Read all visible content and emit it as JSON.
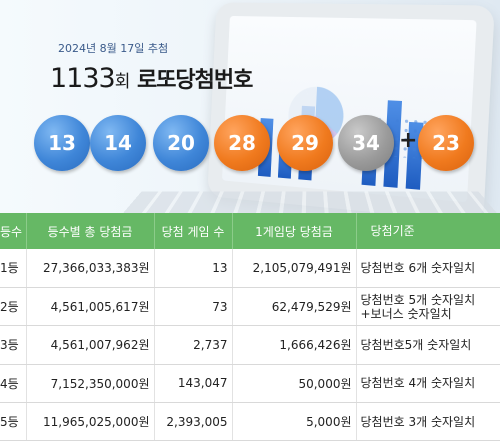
{
  "banner": {
    "draw_date": "2024년 8월 17일 추첨",
    "round_number": "1133",
    "round_unit": "회",
    "round_text": "로또당첨번호",
    "numbers": [
      "13",
      "14",
      "20",
      "28",
      "29",
      "34"
    ],
    "plus": "+",
    "bonus": "23",
    "ball_colors": {
      "blue": "#3f86d8",
      "orange": "#f07a1e",
      "gray": "#9b9b9b"
    }
  },
  "table": {
    "headers": [
      "등수",
      "등수별 총 당첨금",
      "당첨 게임 수",
      "1게임당 당첨금",
      "당첨기준"
    ],
    "header_color": "#66b865",
    "rows": [
      {
        "rank": "1등",
        "total": "27,366,033,383원",
        "count": "13",
        "per_game": "2,105,079,491원",
        "criteria": "당첨번호 6개 숫자일치",
        "criteria2": ""
      },
      {
        "rank": "2등",
        "total": "4,561,005,617원",
        "count": "73",
        "per_game": "62,479,529원",
        "criteria": "당첨번호 5개 숫자일치",
        "criteria2": "+보너스 숫자일치"
      },
      {
        "rank": "3등",
        "total": "4,561,007,962원",
        "count": "2,737",
        "per_game": "1,666,426원",
        "criteria": "당첨번호5개 숫자일치",
        "criteria2": ""
      },
      {
        "rank": "4등",
        "total": "7,152,350,000원",
        "count": "143,047",
        "per_game": "50,000원",
        "criteria": "당첨번호 4개 숫자일치",
        "criteria2": ""
      },
      {
        "rank": "5등",
        "total": "11,965,025,000원",
        "count": "2,393,005",
        "per_game": "5,000원",
        "criteria": "당첨번호 3개 숫자일치",
        "criteria2": ""
      }
    ]
  }
}
